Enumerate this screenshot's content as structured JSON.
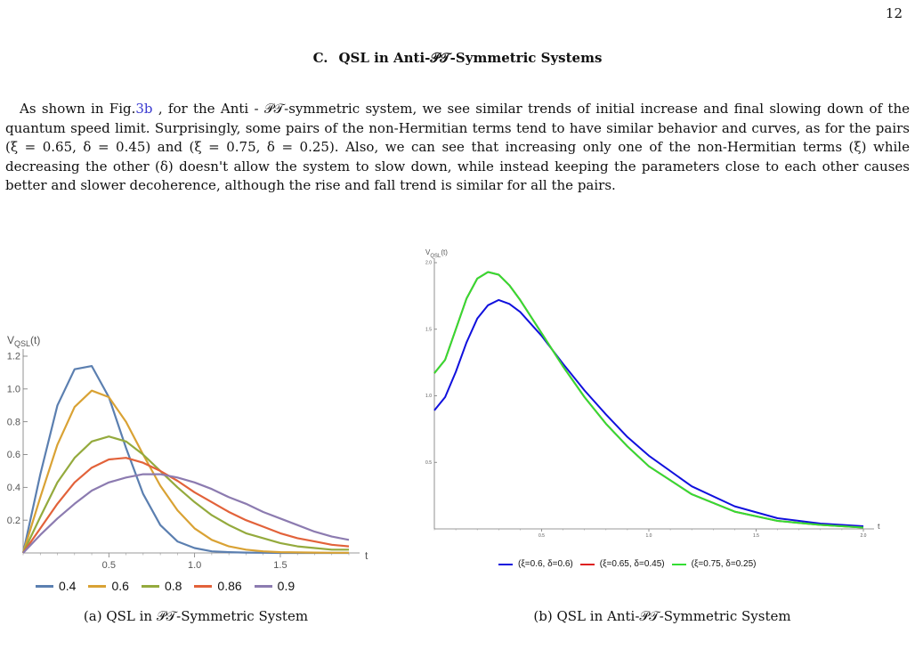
{
  "page_number": "12",
  "section": {
    "label": "C.",
    "title": "QSL in Anti-𝒫𝒯-Symmetric Systems"
  },
  "paragraph": {
    "before_ref": "As shown in Fig.",
    "ref": "3b",
    "after_ref": " , for the Anti - 𝒫𝒯-symmetric system, we see similar trends of initial increase and final slowing down of the quantum speed limit. Surprisingly, some pairs of the non-Hermitian terms tend to have similar behavior and curves, as for the pairs (ξ = 0.65, δ = 0.45) and (ξ = 0.75, δ = 0.25). Also, we can see that increasing only one of the non-Hermitian terms (ξ) while decreasing the other (δ) doesn't allow the system to slow down, while instead keeping the parameters close to each other causes better and slower decoherence, although the rise and fall trend is similar for all the pairs."
  },
  "colors": {
    "a_0_4": "#5b7fb0",
    "a_0_6": "#d9a234",
    "a_0_8": "#94aa3d",
    "a_0_86": "#e2623a",
    "a_0_9": "#8c7bb0",
    "b_blue": "#1010dd",
    "b_red": "#dd2020",
    "b_green": "#33dd33"
  },
  "chart_data": [
    {
      "type": "line",
      "ylabel": "V_QSL(t)",
      "xlabel": "t",
      "xlim": [
        0,
        1.9
      ],
      "ylim": [
        0,
        1.2
      ],
      "xticks": [
        "0.5",
        "1.0",
        "1.5"
      ],
      "yticks": [
        "0.2",
        "0.4",
        "0.6",
        "0.8",
        "1.0",
        "1.2"
      ],
      "legend_position": "bottom",
      "caption": "(a) QSL in 𝒫𝒯-Symmetric System",
      "x": [
        0.0,
        0.1,
        0.2,
        0.3,
        0.4,
        0.5,
        0.6,
        0.7,
        0.8,
        0.9,
        1.0,
        1.1,
        1.2,
        1.3,
        1.4,
        1.5,
        1.6,
        1.7,
        1.8,
        1.9
      ],
      "series": [
        {
          "name": "0.4",
          "values": [
            0.0,
            0.48,
            0.9,
            1.12,
            1.14,
            0.95,
            0.64,
            0.36,
            0.17,
            0.07,
            0.03,
            0.01,
            0.005,
            0.002,
            0.001,
            0.0,
            0.0,
            0.0,
            0.0,
            0.0
          ]
        },
        {
          "name": "0.6",
          "values": [
            0.0,
            0.34,
            0.66,
            0.89,
            0.99,
            0.95,
            0.8,
            0.6,
            0.41,
            0.26,
            0.15,
            0.08,
            0.04,
            0.02,
            0.01,
            0.005,
            0.003,
            0.002,
            0.001,
            0.001
          ]
        },
        {
          "name": "0.8",
          "values": [
            0.0,
            0.22,
            0.43,
            0.58,
            0.68,
            0.71,
            0.68,
            0.6,
            0.5,
            0.4,
            0.31,
            0.23,
            0.17,
            0.12,
            0.09,
            0.06,
            0.04,
            0.03,
            0.02,
            0.02
          ]
        },
        {
          "name": "0.86",
          "values": [
            0.0,
            0.15,
            0.3,
            0.43,
            0.52,
            0.57,
            0.58,
            0.55,
            0.5,
            0.44,
            0.37,
            0.31,
            0.25,
            0.2,
            0.16,
            0.12,
            0.09,
            0.07,
            0.05,
            0.04
          ]
        },
        {
          "name": "0.9",
          "values": [
            0.0,
            0.11,
            0.21,
            0.3,
            0.38,
            0.43,
            0.46,
            0.48,
            0.48,
            0.46,
            0.43,
            0.39,
            0.34,
            0.3,
            0.25,
            0.21,
            0.17,
            0.13,
            0.1,
            0.08
          ]
        }
      ]
    },
    {
      "type": "line",
      "ylabel": "V_QSL(t)",
      "xlabel": "t",
      "xlim": [
        0,
        2.0
      ],
      "ylim": [
        0,
        2.0
      ],
      "xticks": [
        "0.5",
        "1.0",
        "1.5",
        "2.0"
      ],
      "yticks": [
        "0.5",
        "1.0",
        "1.5",
        "2.0"
      ],
      "legend_position": "bottom",
      "caption": "(b) QSL in Anti-𝒫𝒯-Symmetric System",
      "x": [
        0.0,
        0.05,
        0.1,
        0.15,
        0.2,
        0.25,
        0.3,
        0.35,
        0.4,
        0.5,
        0.6,
        0.7,
        0.8,
        0.9,
        1.0,
        1.2,
        1.4,
        1.6,
        1.8,
        2.0
      ],
      "series": [
        {
          "name": "(ξ=0.6, δ=0.6)",
          "values": [
            0.89,
            0.99,
            1.18,
            1.4,
            1.58,
            1.68,
            1.72,
            1.69,
            1.63,
            1.45,
            1.24,
            1.04,
            0.86,
            0.69,
            0.55,
            0.32,
            0.17,
            0.08,
            0.04,
            0.02
          ]
        },
        {
          "name": "(ξ=0.65, δ=0.45)",
          "values": [
            1.17,
            1.27,
            1.5,
            1.73,
            1.88,
            1.93,
            1.91,
            1.83,
            1.72,
            1.47,
            1.22,
            0.99,
            0.79,
            0.62,
            0.47,
            0.26,
            0.13,
            0.06,
            0.03,
            0.01
          ]
        },
        {
          "name": "(ξ=0.75, δ=0.25)",
          "values": [
            1.17,
            1.27,
            1.5,
            1.73,
            1.88,
            1.93,
            1.91,
            1.83,
            1.72,
            1.47,
            1.22,
            0.99,
            0.79,
            0.62,
            0.47,
            0.26,
            0.13,
            0.06,
            0.03,
            0.01
          ]
        }
      ]
    }
  ]
}
